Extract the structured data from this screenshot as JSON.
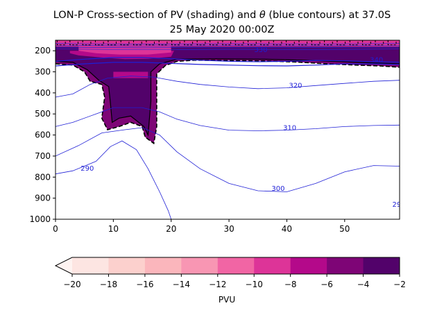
{
  "chart_data": {
    "type": "heatmap",
    "title_line1": "LON-P Cross-section of PV (shading) and",
    "title_theta": "θ",
    "title_line1_rest": "(blue contours) at 37.0S",
    "title_line2": "25 May 2020 00:00Z",
    "xlabel": "",
    "ylabel": "",
    "xlim": [
      0,
      59.5
    ],
    "ylim": [
      1000,
      150
    ],
    "y_inverted": true,
    "x_ticks": [
      0,
      10,
      20,
      30,
      40,
      50
    ],
    "y_ticks": [
      200,
      300,
      400,
      500,
      600,
      700,
      800,
      900,
      1000
    ],
    "colorbar": {
      "label": "PVU",
      "extend": "min",
      "levels": [
        -20,
        -18,
        -16,
        -14,
        -12,
        -10,
        -8,
        -6,
        -4,
        -2
      ],
      "colors": [
        "#fde5e2",
        "#fcd0cd",
        "#fbb6bc",
        "#f896b3",
        "#f165a4",
        "#dd3498",
        "#b4098a",
        "#7e0576",
        "#52026a"
      ],
      "extend_color": "#fef3f1"
    },
    "contour_labels": [
      {
        "text": "290",
        "x": 5.5,
        "p": 770
      },
      {
        "text": "300",
        "x": 38.5,
        "p": 865
      },
      {
        "text": "310",
        "x": 40.5,
        "p": 577
      },
      {
        "text": "320",
        "x": 41.5,
        "p": 375
      },
      {
        "text": "330",
        "x": 35.5,
        "p": 206
      },
      {
        "text": "340",
        "x": 55.5,
        "p": 253
      },
      {
        "text": "29",
        "x": 59,
        "p": 940
      }
    ],
    "theta_lines": [
      {
        "level": "290",
        "points": [
          [
            0,
            785
          ],
          [
            3,
            770
          ],
          [
            7,
            725
          ],
          [
            9.5,
            655
          ],
          [
            11.5,
            628
          ],
          [
            14,
            670
          ],
          [
            16,
            760
          ],
          [
            18,
            870
          ],
          [
            19.5,
            960
          ],
          [
            20,
            1000
          ]
        ]
      },
      {
        "level": "300",
        "points": [
          [
            0,
            700
          ],
          [
            4,
            650
          ],
          [
            8,
            590
          ],
          [
            12,
            575
          ],
          [
            15,
            565
          ],
          [
            18,
            600
          ],
          [
            21,
            680
          ],
          [
            25,
            760
          ],
          [
            30,
            830
          ],
          [
            35,
            865
          ],
          [
            40,
            870
          ],
          [
            45,
            830
          ],
          [
            50,
            775
          ],
          [
            55,
            745
          ],
          [
            59.5,
            748
          ]
        ]
      },
      {
        "level": "310",
        "points": [
          [
            0,
            560
          ],
          [
            3,
            540
          ],
          [
            7,
            500
          ],
          [
            10,
            470
          ],
          [
            15,
            470
          ],
          [
            18,
            490
          ],
          [
            21,
            525
          ],
          [
            25,
            555
          ],
          [
            30,
            577
          ],
          [
            35,
            580
          ],
          [
            40,
            577
          ],
          [
            45,
            570
          ],
          [
            50,
            560
          ],
          [
            55,
            555
          ],
          [
            59.5,
            553
          ]
        ]
      },
      {
        "level": "320",
        "points": [
          [
            0,
            420
          ],
          [
            3,
            405
          ],
          [
            6,
            360
          ],
          [
            9,
            330
          ],
          [
            13,
            320
          ],
          [
            17,
            325
          ],
          [
            21,
            345
          ],
          [
            25,
            360
          ],
          [
            30,
            372
          ],
          [
            35,
            380
          ],
          [
            40,
            376
          ],
          [
            45,
            365
          ],
          [
            50,
            355
          ],
          [
            55,
            345
          ],
          [
            59.5,
            340
          ]
        ]
      },
      {
        "level": "330",
        "points": [
          [
            0,
            272
          ],
          [
            5,
            262
          ],
          [
            10,
            255
          ],
          [
            15,
            255
          ],
          [
            20,
            260
          ],
          [
            25,
            265
          ],
          [
            30,
            268
          ],
          [
            35,
            271
          ],
          [
            40,
            272
          ],
          [
            45,
            268
          ],
          [
            50,
            262
          ],
          [
            55,
            262
          ],
          [
            59.5,
            265
          ]
        ]
      },
      {
        "level": "340",
        "points": [
          [
            0,
            250
          ],
          [
            5,
            240
          ],
          [
            10,
            232
          ],
          [
            15,
            232
          ],
          [
            20,
            238
          ],
          [
            25,
            245
          ],
          [
            30,
            250
          ],
          [
            35,
            252
          ],
          [
            40,
            250
          ],
          [
            45,
            246
          ],
          [
            50,
            248
          ],
          [
            55,
            252
          ],
          [
            59.5,
            254
          ]
        ]
      }
    ]
  }
}
